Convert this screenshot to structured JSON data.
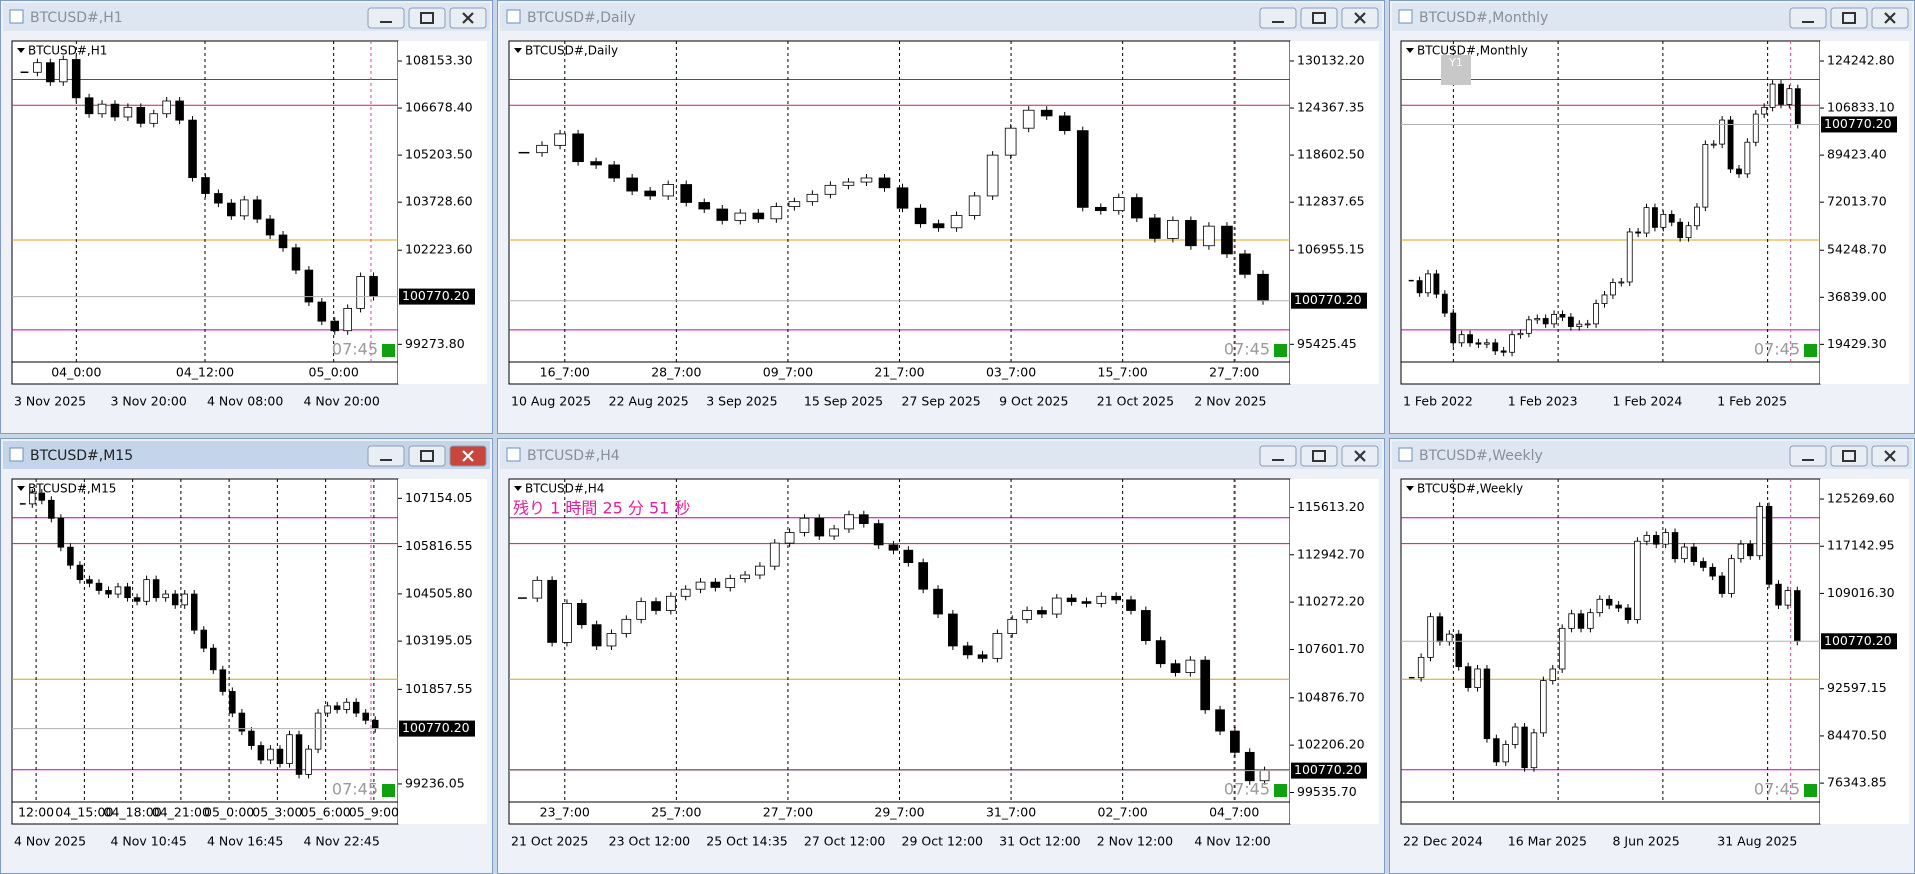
{
  "windows": [
    {
      "title": "BTCUSD#,H1",
      "chart_label": "BTCUSD#,H1",
      "ylim": [
        98720,
        108780
      ],
      "yticks": [
        {
          "value": 108153.3,
          "label": "108153.30"
        },
        {
          "value": 106678.4,
          "label": "106678.40"
        },
        {
          "value": 105203.5,
          "label": "105203.50"
        },
        {
          "value": 103728.6,
          "label": "103728.60"
        },
        {
          "value": 102223.6,
          "label": "102223.60"
        },
        {
          "value": 99273.8,
          "label": "99273.80"
        }
      ],
      "current_price": {
        "value": 100770.2,
        "label": "100770.20"
      },
      "closes": [
        107800,
        108100,
        107500,
        108200,
        107000,
        106500,
        106800,
        106400,
        106700,
        106200,
        106500,
        106900,
        106300,
        104500,
        104000,
        103700,
        103300,
        103800,
        103200,
        102700,
        102300,
        101600,
        100600,
        100000,
        99700,
        100400,
        101400,
        100770
      ],
      "time_labels": [
        "04_0:00",
        "04_12:00",
        "05_0:00"
      ],
      "date_labels": [
        "3 Nov 2025",
        "3 Nov 20:00",
        "4 Nov 08:00",
        "4 Nov 20:00"
      ],
      "clock": "07:45"
    },
    {
      "title": "BTCUSD#,Daily",
      "chart_label": "BTCUSD#,Daily",
      "ylim": [
        93260,
        132580
      ],
      "yticks": [
        {
          "value": 130132.2,
          "label": "130132.20"
        },
        {
          "value": 124367.35,
          "label": "124367.35"
        },
        {
          "value": 118602.5,
          "label": "118602.50"
        },
        {
          "value": 112837.65,
          "label": "112837.65"
        },
        {
          "value": 106955.15,
          "label": "106955.15"
        },
        {
          "value": 95425.45,
          "label": "95425.45"
        }
      ],
      "current_price": {
        "value": 100770.2,
        "label": "100770.20"
      },
      "closes": [
        118900,
        119800,
        121200,
        117800,
        117400,
        115800,
        114200,
        113600,
        115000,
        112800,
        112000,
        110600,
        111500,
        110800,
        112300,
        112900,
        113800,
        114900,
        115300,
        115800,
        114600,
        112100,
        110200,
        109700,
        111200,
        113600,
        118600,
        121900,
        124100,
        123400,
        121600,
        112200,
        111800,
        113400,
        110900,
        108400,
        110600,
        107500,
        109900,
        106500,
        104000,
        100770
      ],
      "time_labels": [
        "16_7:00",
        "28_7:00",
        "09_7:00",
        "21_7:00",
        "03_7:00",
        "15_7:00",
        "27_7:00"
      ],
      "date_labels": [
        "10 Aug 2025",
        "22 Aug 2025",
        "3 Sep 2025",
        "15 Sep 2025",
        "27 Sep 2025",
        "9 Oct 2025",
        "21 Oct 2025",
        "2 Nov 2025"
      ],
      "clock": "07:45"
    },
    {
      "title": "BTCUSD#,Monthly",
      "chart_label": "BTCUSD#,Monthly",
      "period_badge": "Y1",
      "ylim": [
        12900,
        131640
      ],
      "yticks": [
        {
          "value": 124242.8,
          "label": "124242.80"
        },
        {
          "value": 106833.1,
          "label": "106833.10"
        },
        {
          "value": 89423.4,
          "label": "89423.40"
        },
        {
          "value": 72013.7,
          "label": "72013.70"
        },
        {
          "value": 54248.7,
          "label": "54248.70"
        },
        {
          "value": 36839,
          "label": "36839.00"
        },
        {
          "value": 19429.3,
          "label": "19429.30"
        }
      ],
      "current_price": {
        "value": 100770.2,
        "label": "100770.20"
      },
      "closes": [
        43000,
        38500,
        45500,
        38000,
        31000,
        20000,
        23000,
        20000,
        19500,
        20000,
        17000,
        16500,
        23000,
        23500,
        28500,
        29000,
        27000,
        30500,
        29500,
        26000,
        26900,
        27000,
        34500,
        37700,
        42300,
        42500,
        61000,
        60600,
        70000,
        62700,
        67500,
        64600,
        58900,
        63300,
        70200,
        93400,
        93500,
        102400,
        84300,
        82500,
        94200,
        104600,
        107100,
        115700,
        108200,
        114000,
        100770
      ],
      "time_labels": [],
      "date_labels": [
        "1 Feb 2022",
        "1 Feb 2023",
        "1 Feb 2024",
        "1 Feb 2025"
      ],
      "clock": "07:45"
    },
    {
      "title": "BTCUSD#,M15",
      "chart_label": "BTCUSD#,M15",
      "ylim": [
        98735,
        107690
      ],
      "yticks": [
        {
          "value": 107154.05,
          "label": "107154.05"
        },
        {
          "value": 105816.55,
          "label": "105816.55"
        },
        {
          "value": 104505.8,
          "label": "104505.80"
        },
        {
          "value": 103195.05,
          "label": "103195.05"
        },
        {
          "value": 101857.55,
          "label": "101857.55"
        },
        {
          "value": 99236.05,
          "label": "99236.05"
        }
      ],
      "current_price": {
        "value": 100770.2,
        "label": "100770.20"
      },
      "closes": [
        107000,
        107300,
        107100,
        106600,
        105800,
        105300,
        104900,
        104800,
        104600,
        104500,
        104700,
        104400,
        104300,
        104900,
        104400,
        104500,
        104200,
        104500,
        103500,
        103000,
        102400,
        101800,
        101200,
        100700,
        100300,
        99900,
        100200,
        99800,
        100600,
        99500,
        100200,
        101200,
        101400,
        101300,
        101500,
        101200,
        101000,
        100770
      ],
      "time_labels": [
        "12:00",
        "04_15:00",
        "04_18:00",
        "04_21:00",
        "05_0:00",
        "05_3:00",
        "05_6:00",
        "05_9:00"
      ],
      "date_labels": [
        "4 Nov 2025",
        "4 Nov 10:45",
        "4 Nov 16:45",
        "4 Nov 22:45"
      ],
      "clock": "07:45"
    },
    {
      "title": "BTCUSD#,H4",
      "chart_label": "BTCUSD#,H4",
      "countdown": "残り 1 時間 25 分 51 秒",
      "ylim": [
        99000,
        117215
      ],
      "yticks": [
        {
          "value": 115613.2,
          "label": "115613.20"
        },
        {
          "value": 112942.7,
          "label": "112942.70"
        },
        {
          "value": 110272.2,
          "label": "110272.20"
        },
        {
          "value": 107601.7,
          "label": "107601.70"
        },
        {
          "value": 104876.7,
          "label": "104876.70"
        },
        {
          "value": 102206.2,
          "label": "102206.20"
        },
        {
          "value": 99535.7,
          "label": "99535.70"
        }
      ],
      "current_price": {
        "value": 100770.2,
        "label": "100770.20"
      },
      "closes": [
        110500,
        111500,
        108000,
        110200,
        109000,
        107800,
        108500,
        109300,
        110300,
        109800,
        110600,
        111000,
        111400,
        111100,
        111600,
        111800,
        112300,
        113600,
        114200,
        115000,
        114000,
        114400,
        115200,
        114700,
        113500,
        113200,
        112500,
        111000,
        109600,
        107800,
        107300,
        107100,
        108500,
        109300,
        109800,
        109600,
        110500,
        110300,
        110200,
        110600,
        110400,
        109800,
        108100,
        106800,
        106300,
        107000,
        104200,
        103000,
        101800,
        100200,
        100770
      ],
      "time_labels": [
        "23_7:00",
        "25_7:00",
        "27_7:00",
        "29_7:00",
        "31_7:00",
        "02_7:00",
        "04_7:00"
      ],
      "date_labels": [
        "21 Oct 2025",
        "23 Oct 12:00",
        "25 Oct 14:35",
        "27 Oct 12:00",
        "29 Oct 12:00",
        "31 Oct 12:00",
        "2 Nov 12:00",
        "4 Nov 12:00"
      ],
      "clock": "07:45"
    },
    {
      "title": "BTCUSD#,Weekly",
      "chart_label": "BTCUSD#,Weekly",
      "ylim": [
        73090,
        128720
      ],
      "yticks": [
        {
          "value": 125269.6,
          "label": "125269.60"
        },
        {
          "value": 117142.95,
          "label": "117142.95"
        },
        {
          "value": 109016.3,
          "label": "109016.30"
        },
        {
          "value": 92597.15,
          "label": "92597.15"
        },
        {
          "value": 84470.5,
          "label": "84470.50"
        },
        {
          "value": 76343.85,
          "label": "76343.85"
        }
      ],
      "current_price": {
        "value": 100770.2,
        "label": "100770.20"
      },
      "closes": [
        94500,
        98000,
        105000,
        100700,
        102000,
        96400,
        92800,
        96000,
        84000,
        80000,
        83000,
        86000,
        79000,
        85000,
        94000,
        96000,
        103000,
        105500,
        103000,
        105700,
        108000,
        107000,
        106500,
        104500,
        118000,
        119000,
        117500,
        119500,
        115000,
        117000,
        114500,
        113500,
        112000,
        109000,
        115000,
        117500,
        115500,
        124000,
        110600,
        107000,
        109500,
        100770
      ],
      "time_labels": [],
      "date_labels": [
        "22 Dec 2024",
        "16 Mar 2025",
        "8 Jun 2025",
        "31 Aug 2025"
      ],
      "clock": "07:45"
    }
  ]
}
